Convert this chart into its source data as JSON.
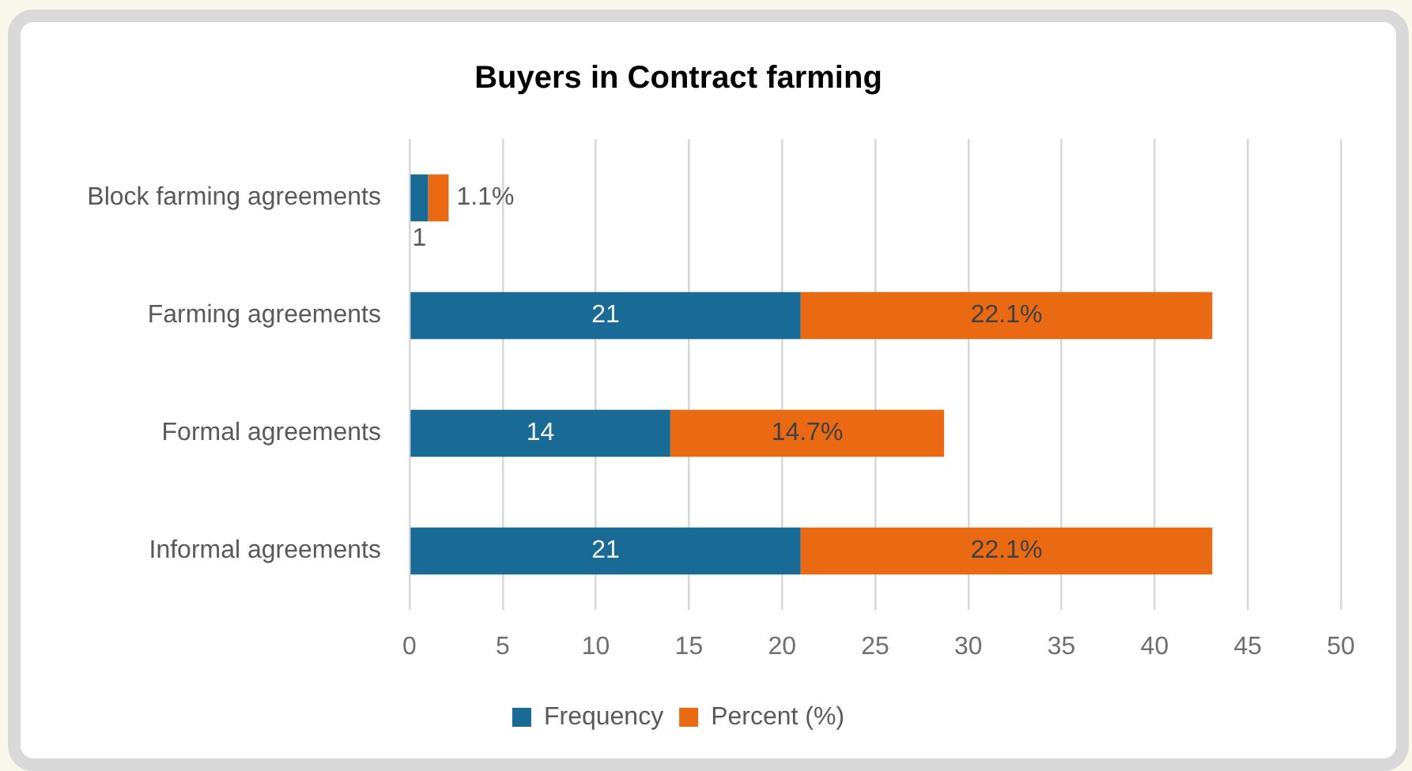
{
  "chart_data": {
    "type": "bar",
    "orientation": "horizontal",
    "stacked": true,
    "title": "Buyers in Contract farming",
    "categories": [
      "Block farming agreements",
      "Farming agreements",
      "Formal agreements",
      "Informal agreements"
    ],
    "series": [
      {
        "name": "Frequency",
        "color": "#1a6a96",
        "values": [
          1,
          21,
          14,
          21
        ],
        "value_labels": [
          "1",
          "21",
          "14",
          "21"
        ]
      },
      {
        "name": "Percent (%)",
        "color": "#ea6a14",
        "values": [
          1.1,
          22.1,
          14.7,
          22.1
        ],
        "value_labels": [
          "1.1%",
          "22.1%",
          "14.7%",
          "22.1%"
        ]
      }
    ],
    "xlim": [
      0,
      50
    ],
    "xticks": [
      0,
      5,
      10,
      15,
      20,
      25,
      30,
      35,
      40,
      45,
      50
    ],
    "grid": "x",
    "legend": "bottom"
  }
}
